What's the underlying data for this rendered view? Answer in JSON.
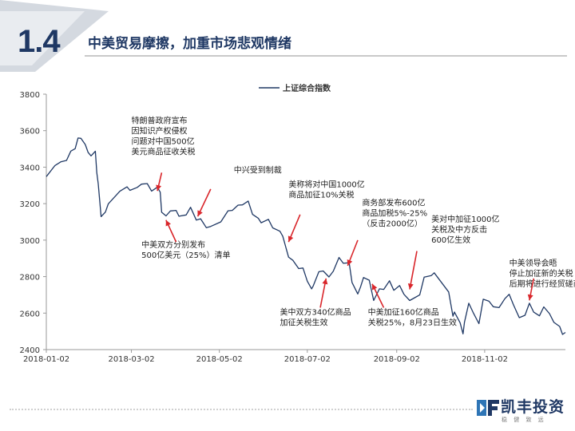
{
  "header": {
    "section_number": "1.4",
    "title": "中美贸易摩擦，加重市场悲观情绪"
  },
  "colors": {
    "line": "#1f3864",
    "arrow": "#d9262b",
    "accent": "#1f3864"
  },
  "logo": {
    "name": "凯丰投资",
    "tagline": "稳 健 致 远"
  },
  "chart_data": {
    "type": "line",
    "legend": "上证综合指数",
    "legend_position": "top-center",
    "ylim": [
      2400,
      3800
    ],
    "yticks": [
      2400,
      2600,
      2800,
      3000,
      3200,
      3400,
      3600,
      3800
    ],
    "xlim": [
      "2018-01-02",
      "2018-12-28"
    ],
    "xticks": [
      "2018-01-02",
      "2018-03-02",
      "2018-05-02",
      "2018-07-02",
      "2018-09-02",
      "2018-11-02"
    ],
    "grid": false,
    "series": [
      {
        "name": "上证综合指数",
        "points": [
          [
            "2018-01-02",
            3348
          ],
          [
            "2018-01-08",
            3409
          ],
          [
            "2018-01-12",
            3429
          ],
          [
            "2018-01-16",
            3437
          ],
          [
            "2018-01-19",
            3488
          ],
          [
            "2018-01-22",
            3501
          ],
          [
            "2018-01-24",
            3560
          ],
          [
            "2018-01-26",
            3558
          ],
          [
            "2018-01-29",
            3524
          ],
          [
            "2018-01-31",
            3480
          ],
          [
            "2018-02-02",
            3462
          ],
          [
            "2018-02-05",
            3487
          ],
          [
            "2018-02-06",
            3370
          ],
          [
            "2018-02-07",
            3309
          ],
          [
            "2018-02-09",
            3129
          ],
          [
            "2018-02-12",
            3154
          ],
          [
            "2018-02-14",
            3199
          ],
          [
            "2018-02-22",
            3268
          ],
          [
            "2018-02-27",
            3292
          ],
          [
            "2018-03-01",
            3273
          ],
          [
            "2018-03-06",
            3289
          ],
          [
            "2018-03-09",
            3307
          ],
          [
            "2018-03-13",
            3310
          ],
          [
            "2018-03-16",
            3269
          ],
          [
            "2018-03-20",
            3290
          ],
          [
            "2018-03-22",
            3263
          ],
          [
            "2018-03-23",
            3153
          ],
          [
            "2018-03-26",
            3133
          ],
          [
            "2018-03-29",
            3160
          ],
          [
            "2018-04-02",
            3163
          ],
          [
            "2018-04-04",
            3131
          ],
          [
            "2018-04-09",
            3138
          ],
          [
            "2018-04-12",
            3180
          ],
          [
            "2018-04-16",
            3110
          ],
          [
            "2018-04-19",
            3117
          ],
          [
            "2018-04-23",
            3068
          ],
          [
            "2018-04-26",
            3075
          ],
          [
            "2018-05-03",
            3100
          ],
          [
            "2018-05-08",
            3161
          ],
          [
            "2018-05-11",
            3163
          ],
          [
            "2018-05-15",
            3192
          ],
          [
            "2018-05-18",
            3193
          ],
          [
            "2018-05-22",
            3214
          ],
          [
            "2018-05-25",
            3141
          ],
          [
            "2018-05-29",
            3120
          ],
          [
            "2018-05-31",
            3095
          ],
          [
            "2018-06-05",
            3114
          ],
          [
            "2018-06-08",
            3067
          ],
          [
            "2018-06-13",
            3049
          ],
          [
            "2018-06-15",
            3021
          ],
          [
            "2018-06-19",
            2907
          ],
          [
            "2018-06-22",
            2889
          ],
          [
            "2018-06-26",
            2844
          ],
          [
            "2018-06-29",
            2847
          ],
          [
            "2018-07-02",
            2775
          ],
          [
            "2018-07-05",
            2733
          ],
          [
            "2018-07-06",
            2747
          ],
          [
            "2018-07-10",
            2827
          ],
          [
            "2018-07-13",
            2831
          ],
          [
            "2018-07-17",
            2798
          ],
          [
            "2018-07-20",
            2829
          ],
          [
            "2018-07-24",
            2905
          ],
          [
            "2018-07-27",
            2873
          ],
          [
            "2018-07-31",
            2876
          ],
          [
            "2018-08-02",
            2768
          ],
          [
            "2018-08-06",
            2705
          ],
          [
            "2018-08-08",
            2745
          ],
          [
            "2018-08-10",
            2795
          ],
          [
            "2018-08-14",
            2780
          ],
          [
            "2018-08-17",
            2669
          ],
          [
            "2018-08-21",
            2733
          ],
          [
            "2018-08-24",
            2730
          ],
          [
            "2018-08-28",
            2777
          ],
          [
            "2018-08-31",
            2725
          ],
          [
            "2018-09-04",
            2751
          ],
          [
            "2018-09-07",
            2703
          ],
          [
            "2018-09-11",
            2669
          ],
          [
            "2018-09-14",
            2682
          ],
          [
            "2018-09-18",
            2700
          ],
          [
            "2018-09-21",
            2797
          ],
          [
            "2018-09-26",
            2806
          ],
          [
            "2018-09-28",
            2821
          ],
          [
            "2018-10-08",
            2716
          ],
          [
            "2018-10-11",
            2583
          ],
          [
            "2018-10-12",
            2606
          ],
          [
            "2018-10-16",
            2546
          ],
          [
            "2018-10-18",
            2486
          ],
          [
            "2018-10-19",
            2550
          ],
          [
            "2018-10-22",
            2654
          ],
          [
            "2018-10-25",
            2604
          ],
          [
            "2018-10-29",
            2542
          ],
          [
            "2018-11-01",
            2676
          ],
          [
            "2018-11-05",
            2665
          ],
          [
            "2018-11-08",
            2635
          ],
          [
            "2018-11-12",
            2630
          ],
          [
            "2018-11-16",
            2679
          ],
          [
            "2018-11-19",
            2703
          ],
          [
            "2018-11-22",
            2645
          ],
          [
            "2018-11-26",
            2575
          ],
          [
            "2018-11-30",
            2588
          ],
          [
            "2018-12-03",
            2654
          ],
          [
            "2018-12-06",
            2605
          ],
          [
            "2018-12-10",
            2585
          ],
          [
            "2018-12-13",
            2634
          ],
          [
            "2018-12-17",
            2597
          ],
          [
            "2018-12-20",
            2549
          ],
          [
            "2018-12-24",
            2527
          ],
          [
            "2018-12-26",
            2483
          ],
          [
            "2018-12-28",
            2494
          ]
        ]
      }
    ],
    "annotations": [
      {
        "text": [
          "特朗普政府宣布",
          "因知识产权侵权",
          "问题对中国500亿",
          "美元商品征收关税"
        ],
        "label_date": "2018-03-02",
        "label_y": 3640,
        "arrow_from": [
          "2018-03-23",
          3370
        ],
        "arrow_to": [
          "2018-03-20",
          3270
        ]
      },
      {
        "text": [
          "中兴受到制裁"
        ],
        "label_date": "2018-05-12",
        "label_y": 3370,
        "arrow_from": [
          "2018-04-26",
          3280
        ],
        "arrow_to": [
          "2018-04-17",
          3130
        ]
      },
      {
        "text": [
          "中美双方分别发布",
          "500亿美元（25%）清单"
        ],
        "label_date": "2018-03-09",
        "label_y": 2960,
        "arrow_from": [
          "2018-04-02",
          2990
        ],
        "arrow_to": [
          "2018-03-26",
          3110
        ]
      },
      {
        "text": [
          "美称将对中国1000亿",
          "商品加征10%关税"
        ],
        "label_date": "2018-06-19",
        "label_y": 3290,
        "arrow_from": [
          "2018-06-27",
          3140
        ],
        "arrow_to": [
          "2018-06-19",
          2990
        ]
      },
      {
        "text": [
          "商务部发布600亿",
          "商品加税5%-25%",
          "（反击2000亿）"
        ],
        "label_date": "2018-08-09",
        "label_y": 3190,
        "arrow_from": [
          "2018-08-06",
          3000
        ],
        "arrow_to": [
          "2018-07-30",
          2860
        ]
      },
      {
        "text": [
          "美中双方340亿商品",
          "加征关税生效"
        ],
        "label_date": "2018-06-13",
        "label_y": 2590,
        "arrow_from": [
          "2018-07-11",
          2630
        ],
        "arrow_to": [
          "2018-07-15",
          2790
        ]
      },
      {
        "text": [
          "中美加征160亿商品",
          "关税25%，8月23日生效"
        ],
        "label_date": "2018-08-13",
        "label_y": 2590,
        "arrow_from": [
          "2018-08-24",
          2630
        ],
        "arrow_to": [
          "2018-08-16",
          2760
        ]
      },
      {
        "text": [
          "美对中加征1000亿",
          "关税及中方反击",
          "600亿生效"
        ],
        "label_date": "2018-09-26",
        "label_y": 3100,
        "arrow_from": [
          "2018-09-16",
          2940
        ],
        "arrow_to": [
          "2018-09-11",
          2730
        ]
      },
      {
        "text": [
          "中美领导会晤",
          "停止加征新的关税",
          "后期将进行经贸磋商"
        ],
        "label_date": "2018-11-19",
        "label_y": 2860,
        "arrow_from": [
          "2018-12-06",
          2790
        ],
        "arrow_to": [
          "2018-12-03",
          2670
        ]
      }
    ]
  }
}
